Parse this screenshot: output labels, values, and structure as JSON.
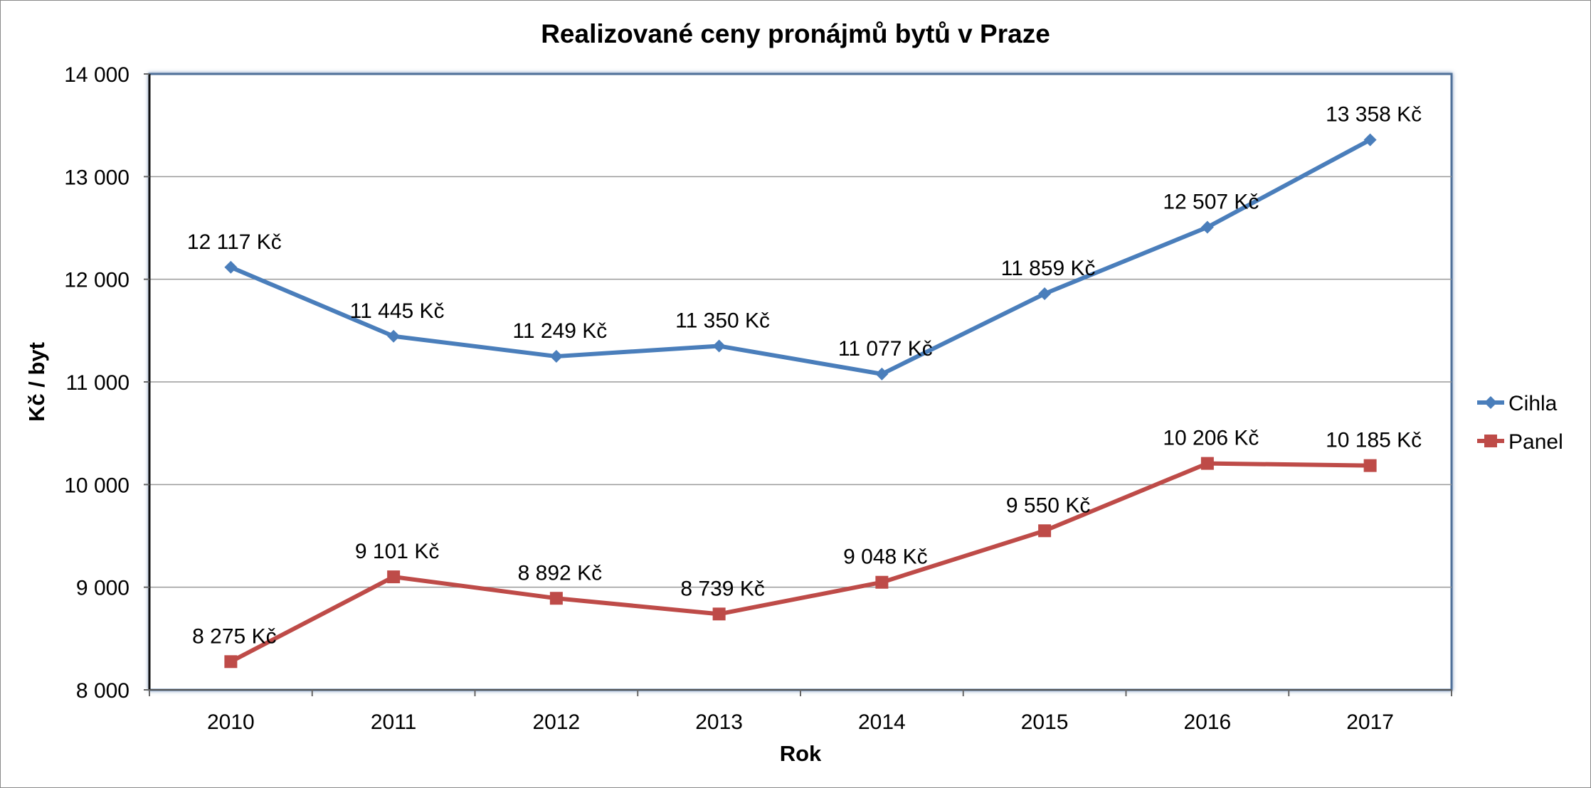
{
  "chart_data": {
    "type": "line",
    "title": "Realizované ceny pronájmů bytů v Praze",
    "xlabel": "Rok",
    "ylabel": "Kč / byt",
    "categories": [
      "2010",
      "2011",
      "2012",
      "2013",
      "2014",
      "2015",
      "2016",
      "2017"
    ],
    "ylim": [
      8000,
      14000
    ],
    "yticks": [
      8000,
      9000,
      10000,
      11000,
      12000,
      13000,
      14000
    ],
    "ytick_labels": [
      "8 000",
      "9 000",
      "10 000",
      "11 000",
      "12 000",
      "13 000",
      "14 000"
    ],
    "grid": true,
    "legend_position": "right",
    "series": [
      {
        "name": "Cihla",
        "color": "#4a7ebb",
        "marker": "diamond",
        "values": [
          12117,
          11445,
          11249,
          11350,
          11077,
          11859,
          12507,
          13358
        ],
        "labels": [
          "12 117 Kč",
          "11 445 Kč",
          "11 249 Kč",
          "11 350 Kč",
          "11 077 Kč",
          "11 859 Kč",
          "12 507 Kč",
          "13 358 Kč"
        ]
      },
      {
        "name": "Panel",
        "color": "#be4b48",
        "marker": "square",
        "values": [
          8275,
          9101,
          8892,
          8739,
          9048,
          9550,
          10206,
          10185
        ],
        "labels": [
          "8 275 Kč",
          "9 101 Kč",
          "8 892 Kč",
          "8 739 Kč",
          "9 048 Kč",
          "9 550 Kč",
          "10 206 Kč",
          "10 185 Kč"
        ]
      }
    ]
  }
}
